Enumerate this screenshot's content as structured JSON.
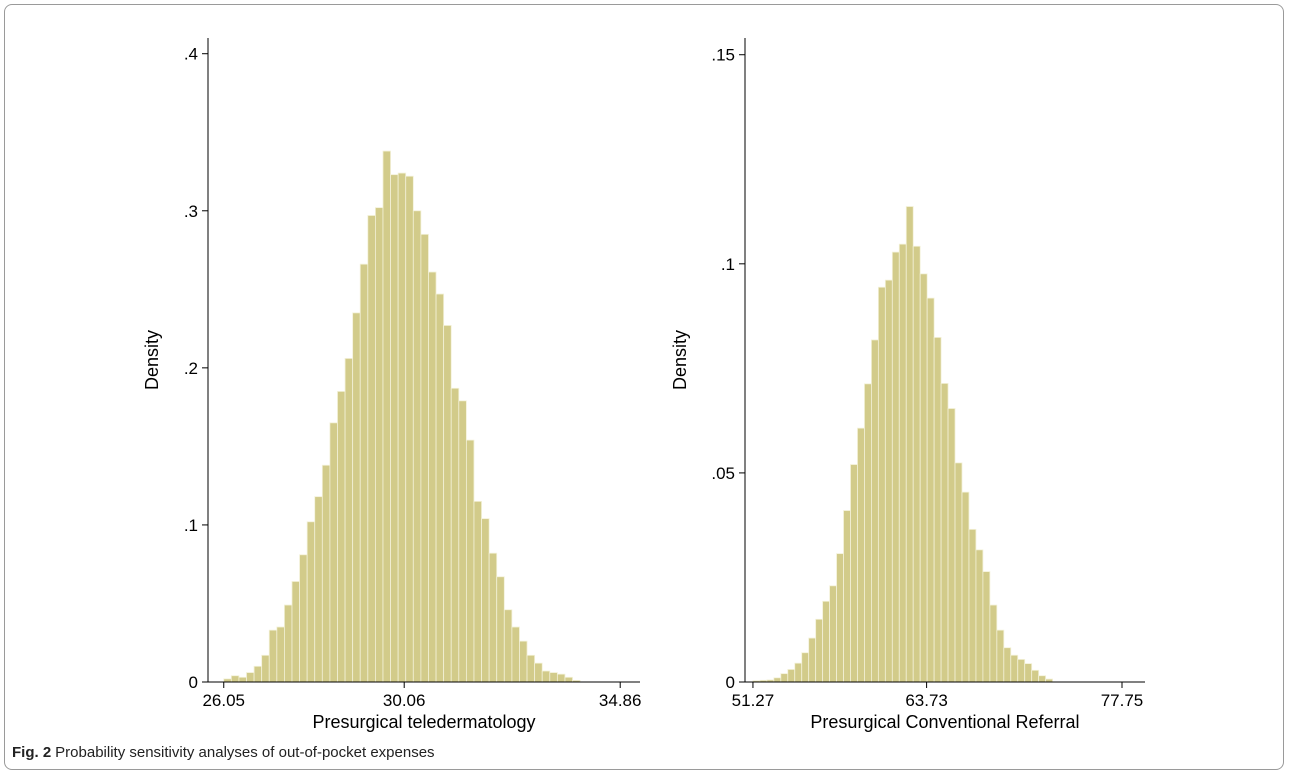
{
  "caption": {
    "label": "Fig. 2",
    "text": "Probability sensitivity analyses of out-of-pocket expenses"
  },
  "colors": {
    "bar_fill": "#d2cb8a",
    "bar_stroke": "#f3f1d8",
    "axis": "#000000"
  },
  "chart_data": [
    {
      "type": "bar",
      "title": "",
      "xlabel": "Presurgical teledermatology",
      "ylabel": "Density",
      "xlim": [
        25.7,
        35.3
      ],
      "ylim": [
        0,
        0.41
      ],
      "x_ticks": [
        "26.05",
        "30.06",
        "34.86"
      ],
      "y_ticks": [
        "0",
        ".1",
        ".2",
        ".3",
        ".4"
      ],
      "bin_start": 26.05,
      "bin_width": 0.1685,
      "values": [
        0.002,
        0.004,
        0.003,
        0.006,
        0.01,
        0.017,
        0.033,
        0.035,
        0.049,
        0.064,
        0.081,
        0.102,
        0.118,
        0.138,
        0.165,
        0.185,
        0.206,
        0.235,
        0.266,
        0.297,
        0.302,
        0.338,
        0.323,
        0.324,
        0.322,
        0.3,
        0.285,
        0.261,
        0.247,
        0.227,
        0.187,
        0.179,
        0.154,
        0.115,
        0.104,
        0.082,
        0.067,
        0.046,
        0.035,
        0.026,
        0.017,
        0.012,
        0.007,
        0.006,
        0.005,
        0.003,
        0.001
      ]
    },
    {
      "type": "bar",
      "title": "",
      "xlabel": "Presurgical Conventional Referral",
      "ylabel": "Density",
      "xlim": [
        50.7,
        79.4
      ],
      "ylim": [
        0,
        0.154
      ],
      "x_ticks": [
        "51.27",
        "63.73",
        "77.75"
      ],
      "y_ticks": [
        "0",
        ".05",
        ".1",
        ".15"
      ],
      "bin_start": 51.27,
      "bin_width": 0.5,
      "values": [
        0.0003,
        0.0004,
        0.0005,
        0.001,
        0.002,
        0.003,
        0.0045,
        0.007,
        0.0105,
        0.015,
        0.0193,
        0.023,
        0.0307,
        0.041,
        0.052,
        0.0607,
        0.0713,
        0.0818,
        0.0944,
        0.0961,
        0.1028,
        0.1047,
        0.1137,
        0.1042,
        0.0976,
        0.0918,
        0.0824,
        0.0714,
        0.0654,
        0.0524,
        0.0454,
        0.0365,
        0.0316,
        0.0264,
        0.0184,
        0.0124,
        0.0082,
        0.0064,
        0.0054,
        0.0044,
        0.0028,
        0.0015,
        0.0007
      ]
    }
  ]
}
